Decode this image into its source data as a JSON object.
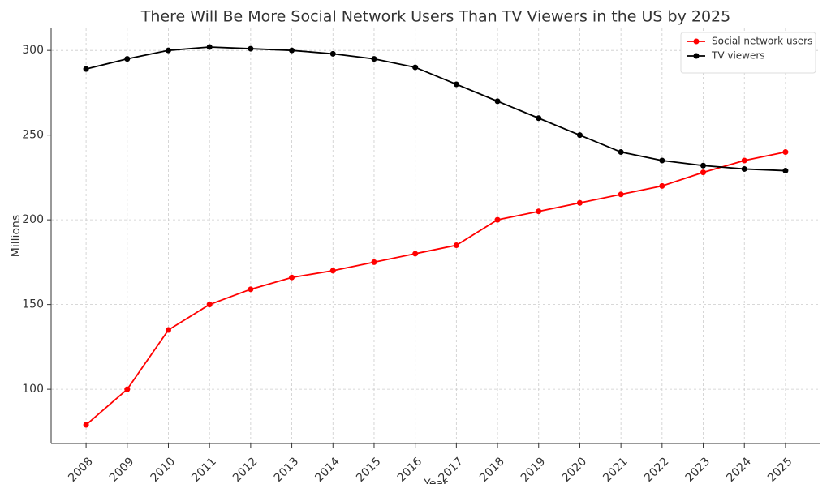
{
  "chart_data": {
    "type": "line",
    "title": "There Will Be More Social Network Users Than TV Viewers in the US by 2025",
    "xlabel": "Year",
    "ylabel": "Millions",
    "x": [
      2008,
      2009,
      2010,
      2011,
      2012,
      2013,
      2014,
      2015,
      2016,
      2017,
      2018,
      2019,
      2020,
      2021,
      2022,
      2023,
      2024,
      2025
    ],
    "series": [
      {
        "name": "Social network users",
        "color": "#ff0000",
        "values": [
          79,
          100,
          135,
          150,
          159,
          166,
          170,
          175,
          180,
          185,
          200,
          205,
          210,
          215,
          220,
          228,
          235,
          240
        ]
      },
      {
        "name": "TV viewers",
        "color": "#000000",
        "values": [
          289,
          295,
          300,
          302,
          301,
          300,
          298,
          295,
          290,
          280,
          270,
          260,
          250,
          240,
          235,
          232,
          230,
          229
        ]
      }
    ],
    "xlim": [
      2007.15,
      2025.83
    ],
    "xticks": [
      2008,
      2009,
      2010,
      2011,
      2012,
      2013,
      2014,
      2015,
      2016,
      2017,
      2018,
      2019,
      2020,
      2021,
      2022,
      2023,
      2024,
      2025
    ],
    "ylim": [
      68,
      313
    ],
    "yticks": [
      100,
      150,
      200,
      250,
      300
    ],
    "grid": true,
    "legend": "upper right"
  }
}
